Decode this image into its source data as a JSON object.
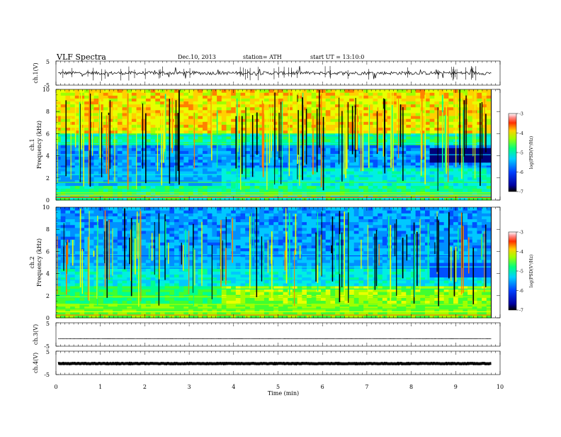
{
  "header": {
    "title": "VLF  Spectra",
    "date": "Dec.10, 2013",
    "station": "station= ATH",
    "start": "start  UT =   13:10:0"
  },
  "chart_data": [
    {
      "type": "line",
      "name": "ch1-waveform",
      "ylabel": "ch.1(V)",
      "ylim": [
        -5,
        5
      ],
      "yticks": [
        "5",
        "-5"
      ],
      "baseline": 0
    },
    {
      "type": "heatmap",
      "name": "ch1-spectrogram",
      "ylabel_line1": "ch.1",
      "ylabel_line2": "Frequency  (kHz)",
      "ylim": [
        0,
        10
      ],
      "yticks": [
        "0",
        "2",
        "4",
        "6",
        "8",
        "10"
      ],
      "colorbar": {
        "label": "log(PSD(V²/Hz)",
        "range": [
          -7,
          -3
        ],
        "ticks": [
          "-3",
          "-4",
          "-5",
          "-6",
          "-7"
        ]
      }
    },
    {
      "type": "heatmap",
      "name": "ch2-spectrogram",
      "ylabel_line1": "ch.2",
      "ylabel_line2": "Frequency  (kHz)",
      "ylim": [
        0,
        10
      ],
      "yticks": [
        "0",
        "2",
        "4",
        "6",
        "8",
        "10"
      ],
      "colorbar": {
        "label": "log(PSD(V²/Hz)",
        "range": [
          -7,
          -3
        ],
        "ticks": [
          "-3",
          "-4",
          "-5",
          "-6",
          "-7"
        ]
      }
    },
    {
      "type": "line",
      "name": "ch3-waveform",
      "ylabel": "ch.3(V)",
      "ylim": [
        -5,
        5
      ],
      "yticks": [
        "5",
        "-5"
      ],
      "baseline": -1.8
    },
    {
      "type": "line",
      "name": "ch4-waveform",
      "ylabel": "ch.4(V)",
      "ylim": [
        -5,
        5
      ],
      "yticks": [
        "5",
        "-5"
      ],
      "baseline": -0.3
    }
  ],
  "xaxis": {
    "label": "Time  (min)",
    "range": [
      0,
      10
    ],
    "ticks": [
      "0",
      "1",
      "2",
      "3",
      "4",
      "5",
      "6",
      "7",
      "8",
      "9",
      "10"
    ],
    "data_end": 9.8
  }
}
